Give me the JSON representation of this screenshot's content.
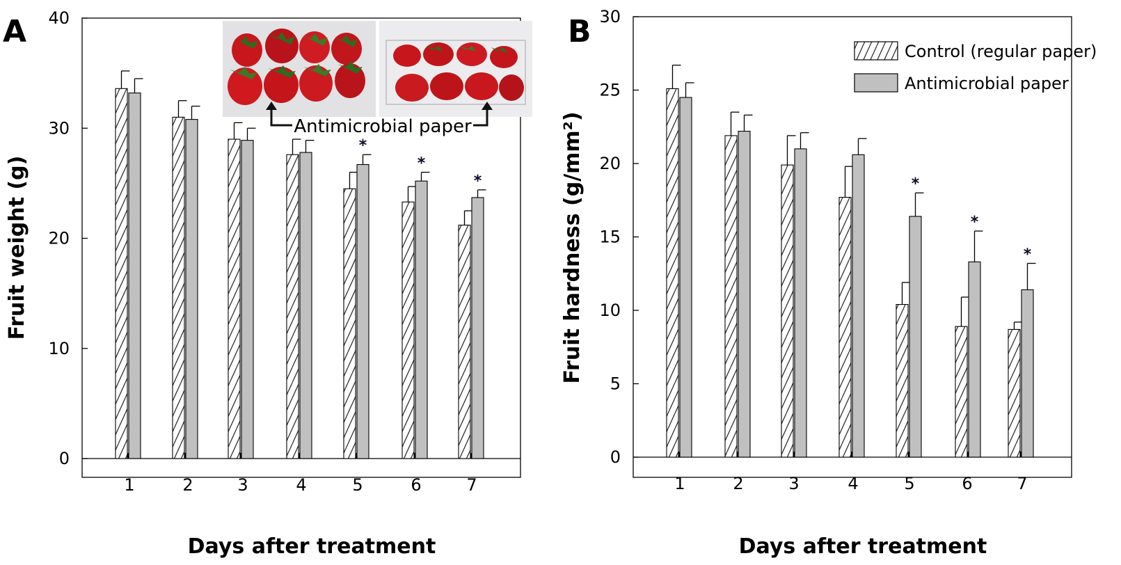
{
  "colors": {
    "control_fill": "#ffffff",
    "control_hatch": "#333333",
    "antimicrobial_fill": "#c0c0c0",
    "strawberry_red": "#c8161d",
    "leaf_green": "#2f6b1f"
  },
  "inset": {
    "caption": "Antimicrobial paper"
  },
  "chart_data": [
    {
      "type": "bar",
      "panel_letter": "A",
      "xlabel": "Days after treatment",
      "ylabel": "Fruit weight (g)",
      "ylim": [
        0,
        40
      ],
      "yticks": [
        "0",
        "10",
        "20",
        "30",
        "40"
      ],
      "categories": [
        "1",
        "2",
        "3",
        "4",
        "5",
        "6",
        "7"
      ],
      "legend": "none",
      "series": [
        {
          "name": "Control (regular paper)",
          "pattern": "hatched",
          "values": [
            33.6,
            31.0,
            29.0,
            27.6,
            24.5,
            23.3,
            21.2
          ],
          "errors": [
            1.6,
            1.5,
            1.5,
            1.4,
            1.5,
            1.4,
            1.3
          ]
        },
        {
          "name": "Antimicrobial paper",
          "pattern": "gray",
          "values": [
            33.2,
            30.8,
            28.9,
            27.8,
            26.7,
            25.2,
            23.7
          ],
          "errors": [
            1.3,
            1.2,
            1.1,
            1.1,
            0.9,
            0.8,
            0.7
          ]
        }
      ],
      "significance": [
        "",
        "",
        "",
        "",
        "*",
        "*",
        "*"
      ]
    },
    {
      "type": "bar",
      "panel_letter": "B",
      "xlabel": "Days after treatment",
      "ylabel": "Fruit hardness (g/mm²)",
      "ylim": [
        0,
        30
      ],
      "yticks": [
        "0",
        "5",
        "10",
        "15",
        "20",
        "25",
        "30"
      ],
      "categories": [
        "1",
        "2",
        "3",
        "4",
        "5",
        "6",
        "7"
      ],
      "legend": "top-right",
      "series": [
        {
          "name": "Control (regular paper)",
          "pattern": "hatched",
          "values": [
            25.1,
            21.9,
            19.9,
            17.7,
            10.4,
            8.9,
            8.7
          ],
          "errors": [
            1.6,
            1.6,
            2.0,
            2.1,
            1.5,
            2.0,
            0.5
          ]
        },
        {
          "name": "Antimicrobial paper",
          "pattern": "gray",
          "values": [
            24.5,
            22.2,
            21.0,
            20.6,
            16.4,
            13.3,
            11.4
          ],
          "errors": [
            1.0,
            1.1,
            1.1,
            1.1,
            1.6,
            2.1,
            1.8
          ]
        }
      ],
      "significance": [
        "",
        "",
        "",
        "",
        "*",
        "*",
        "*"
      ]
    }
  ]
}
